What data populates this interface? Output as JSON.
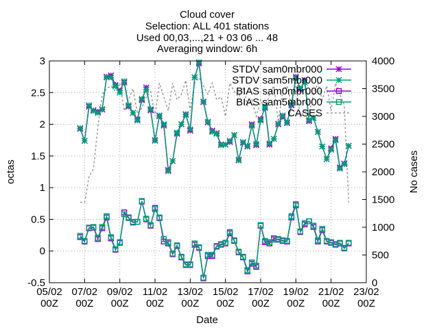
{
  "chart_data": {
    "type": "line",
    "title_lines": [
      "Cloud cover",
      "Selection: ALL    401 stations",
      "Used 00,03,...,21 + 03 06 ... 48",
      "Averaging window:  6h"
    ],
    "xlabel": "Date",
    "ylabel": "octas",
    "y2label": "No cases",
    "xlim": [
      0,
      18
    ],
    "ylim": [
      -0.5,
      3
    ],
    "y2lim": [
      0,
      4000
    ],
    "x_ticks": [
      {
        "x": 0,
        "line1": "05/02",
        "line2": "00Z"
      },
      {
        "x": 2,
        "line1": "07/02",
        "line2": "00Z"
      },
      {
        "x": 4,
        "line1": "09/02",
        "line2": "00Z"
      },
      {
        "x": 6,
        "line1": "11/02",
        "line2": "00Z"
      },
      {
        "x": 8,
        "line1": "13/02",
        "line2": "00Z"
      },
      {
        "x": 10,
        "line1": "15/02",
        "line2": "00Z"
      },
      {
        "x": 12,
        "line1": "17/02",
        "line2": "00Z"
      },
      {
        "x": 14,
        "line1": "19/02",
        "line2": "00Z"
      },
      {
        "x": 16,
        "line1": "21/02",
        "line2": "00Z"
      },
      {
        "x": 18,
        "line1": "23/02",
        "line2": "00Z"
      }
    ],
    "y_ticks": [
      -0.5,
      0,
      0.5,
      1,
      1.5,
      2,
      2.5,
      3
    ],
    "y2_ticks": [
      0,
      500,
      1000,
      1500,
      2000,
      2500,
      3000,
      3500,
      4000
    ],
    "legend_position": "top-right",
    "colors": {
      "mbr0": "#9400d3",
      "mbr5": "#009e73",
      "cases": "#999999"
    },
    "x": [
      1.75,
      2.0,
      2.25,
      2.5,
      2.75,
      3.0,
      3.25,
      3.5,
      3.75,
      4.0,
      4.25,
      4.5,
      4.75,
      5.0,
      5.25,
      5.5,
      5.75,
      6.0,
      6.25,
      6.5,
      6.75,
      7.0,
      7.25,
      7.5,
      7.75,
      8.0,
      8.25,
      8.5,
      8.75,
      9.0,
      9.25,
      9.5,
      9.75,
      10.0,
      10.25,
      10.5,
      10.75,
      11.0,
      11.25,
      11.5,
      11.75,
      12.0,
      12.25,
      12.5,
      12.75,
      13.0,
      13.25,
      13.5,
      13.75,
      14.0,
      14.25,
      14.5,
      14.75,
      15.0,
      15.25,
      15.5,
      15.75,
      16.0,
      16.25,
      16.5,
      16.75,
      17.0
    ],
    "series": [
      {
        "name": "STDV sam0mbr000",
        "kind": "stdv",
        "color_key": "mbr0",
        "marker": "star",
        "values": [
          1.93,
          1.74,
          2.28,
          2.22,
          2.2,
          2.23,
          2.75,
          2.77,
          2.62,
          2.53,
          2.66,
          2.28,
          2.18,
          2.08,
          2.38,
          2.58,
          2.22,
          1.75,
          2.13,
          1.98,
          1.28,
          1.42,
          1.85,
          2.0,
          2.16,
          1.9,
          2.74,
          2.96,
          2.35,
          2.03,
          1.9,
          1.86,
          1.68,
          1.68,
          1.72,
          1.83,
          1.44,
          1.71,
          1.65,
          2.0,
          1.67,
          2.08,
          2.26,
          1.68,
          1.77,
          2.0,
          2.12,
          2.02,
          2.3,
          2.75,
          2.55,
          2.7,
          2.05,
          2.1,
          1.88,
          1.65,
          1.45,
          1.62,
          1.77,
          1.32,
          1.38,
          1.66
        ]
      },
      {
        "name": "STDV sam5mbr000",
        "kind": "stdv",
        "color_key": "mbr5",
        "marker": "star",
        "values": [
          1.94,
          1.74,
          2.3,
          2.21,
          2.18,
          2.24,
          2.74,
          2.74,
          2.6,
          2.5,
          2.68,
          2.3,
          2.18,
          2.06,
          2.4,
          2.55,
          2.24,
          1.74,
          2.14,
          2.0,
          1.26,
          1.42,
          1.87,
          2.0,
          2.15,
          1.92,
          2.74,
          2.98,
          2.36,
          2.04,
          1.88,
          1.85,
          1.67,
          1.68,
          1.74,
          1.83,
          1.43,
          1.72,
          1.66,
          1.98,
          1.69,
          2.06,
          2.28,
          1.7,
          1.77,
          2.01,
          2.14,
          2.03,
          2.32,
          2.73,
          2.57,
          2.66,
          2.07,
          2.1,
          1.88,
          1.65,
          1.45,
          1.6,
          1.75,
          1.3,
          1.37,
          1.66
        ]
      },
      {
        "name": "BIAS sam0mbr000",
        "kind": "bias",
        "color_key": "mbr0",
        "marker": "square",
        "values": [
          0.22,
          0.15,
          0.36,
          0.37,
          0.19,
          0.36,
          0.53,
          0.2,
          0.02,
          0.13,
          0.61,
          0.53,
          0.45,
          0.46,
          0.78,
          0.5,
          0.4,
          0.68,
          0.52,
          0.15,
          0.12,
          -0.05,
          0.08,
          -0.1,
          -0.22,
          -0.22,
          0.1,
          0.05,
          -0.43,
          -0.08,
          -0.08,
          0.07,
          0.1,
          0.12,
          0.28,
          0.16,
          -0.02,
          -0.1,
          -0.32,
          -0.2,
          -0.25,
          0.4,
          0.14,
          0.12,
          0.2,
          0.18,
          0.16,
          0.15,
          0.53,
          0.72,
          0.3,
          0.42,
          0.47,
          0.38,
          0.15,
          0.33,
          0.15,
          0.13,
          0.1,
          0.12,
          0.05,
          0.12
        ]
      },
      {
        "name": "BIAS sam5mbr000",
        "kind": "bias",
        "color_key": "mbr5",
        "marker": "square",
        "values": [
          0.24,
          0.16,
          0.37,
          0.38,
          0.21,
          0.38,
          0.55,
          0.22,
          0.03,
          0.14,
          0.58,
          0.52,
          0.46,
          0.46,
          0.79,
          0.51,
          0.41,
          0.66,
          0.53,
          0.19,
          0.14,
          -0.04,
          0.09,
          -0.09,
          -0.21,
          -0.21,
          0.12,
          0.06,
          -0.42,
          -0.06,
          -0.06,
          0.08,
          0.11,
          0.13,
          0.3,
          0.17,
          -0.01,
          -0.09,
          -0.3,
          -0.18,
          -0.23,
          0.41,
          0.16,
          0.14,
          0.18,
          0.19,
          0.17,
          0.16,
          0.55,
          0.74,
          0.31,
          0.44,
          0.47,
          0.4,
          0.17,
          0.35,
          0.16,
          0.14,
          0.11,
          0.13,
          0.04,
          0.13
        ]
      },
      {
        "name": "CASES",
        "kind": "cases",
        "color_key": "cases",
        "axis": "y2",
        "values": [
          1450,
          1450,
          1920,
          2050,
          2800,
          3400,
          3500,
          3550,
          3450,
          3600,
          3100,
          3300,
          3500,
          3050,
          3150,
          3350,
          3450,
          3000,
          3600,
          3350,
          3100,
          3600,
          3300,
          3400,
          3650,
          3100,
          3600,
          3700,
          3550,
          3400,
          3600,
          3300,
          3350,
          3000,
          3600,
          3450,
          3350,
          3500,
          3200,
          3300,
          3000,
          3300,
          3100,
          3400,
          3550,
          2900,
          3450,
          3550,
          3200,
          3600,
          3000,
          3100,
          3050,
          3400,
          3600,
          3300,
          3550,
          3100,
          3600,
          3400,
          3200,
          1450
        ]
      }
    ]
  }
}
